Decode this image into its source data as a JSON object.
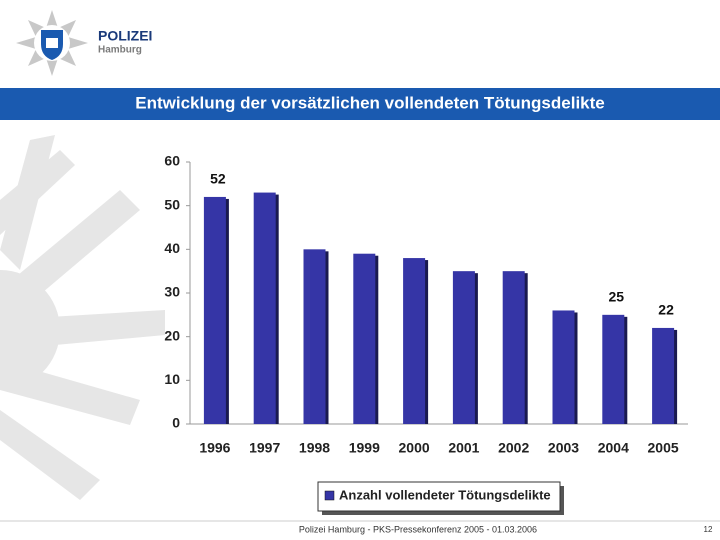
{
  "header": {
    "org": "POLIZEI",
    "city": "Hamburg",
    "title": "Entwicklung der vorsätzlichen vollendeten  Tötungsdelikte"
  },
  "chart_data": {
    "type": "bar",
    "categories": [
      "1996",
      "1997",
      "1998",
      "1999",
      "2000",
      "2001",
      "2002",
      "2003",
      "2004",
      "2005"
    ],
    "series": [
      {
        "name": "Anzahl vollendeter Tötungsdelikte",
        "color": "#3535a6",
        "values": [
          52,
          53,
          40,
          39,
          38,
          35,
          35,
          26,
          25,
          22
        ],
        "value_labels": [
          "52",
          null,
          null,
          null,
          null,
          null,
          null,
          null,
          "25",
          "22"
        ]
      }
    ],
    "ylim": [
      0,
      60
    ],
    "yticks": [
      0,
      10,
      20,
      30,
      40,
      50,
      60
    ],
    "legend": "bottom"
  },
  "footer": {
    "text": "Polizei Hamburg - PKS-Pressekonferenz 2005 - 01.03.2006",
    "page": "12"
  }
}
